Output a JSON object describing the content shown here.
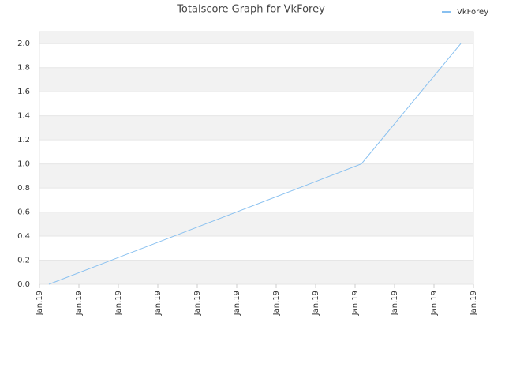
{
  "chart_data": {
    "type": "line",
    "title": "Totalscore Graph for VkForey",
    "x": [
      0.24,
      8.16,
      10.68
    ],
    "series": [
      {
        "name": "VkForey",
        "color": "#88c0f0",
        "values": [
          0,
          1,
          2
        ]
      }
    ],
    "xlim": [
      0,
      11
    ],
    "xticks": [
      {
        "value": 0,
        "label": "Jan.19"
      },
      {
        "value": 1,
        "label": "Jan.19"
      },
      {
        "value": 2,
        "label": "Jan.19"
      },
      {
        "value": 3,
        "label": "Jan.19"
      },
      {
        "value": 4,
        "label": "Jan.19"
      },
      {
        "value": 5,
        "label": "Jan.19"
      },
      {
        "value": 6,
        "label": "Jan.19"
      },
      {
        "value": 7,
        "label": "Jan.19"
      },
      {
        "value": 8,
        "label": "Jan.19"
      },
      {
        "value": 9,
        "label": "Jan.19"
      },
      {
        "value": 10,
        "label": "Jan.19"
      },
      {
        "value": 11,
        "label": "Jan.19"
      }
    ],
    "ylim": [
      0,
      2.1
    ],
    "yticks": [
      {
        "value": 0,
        "label": "0.0"
      },
      0.2,
      0.4,
      0.6,
      0.8,
      {
        "value": 1,
        "label": "1.0"
      },
      1.2,
      1.4,
      1.6,
      1.8,
      {
        "value": 2,
        "label": "2.0"
      }
    ],
    "grid": true,
    "legend": "top-right"
  }
}
